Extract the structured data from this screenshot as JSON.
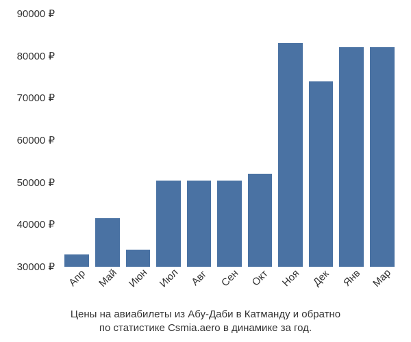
{
  "chart": {
    "type": "bar",
    "categories": [
      "Апр",
      "Май",
      "Июн",
      "Июл",
      "Авг",
      "Сен",
      "Окт",
      "Ноя",
      "Дек",
      "Янв",
      "Мар"
    ],
    "values": [
      33000,
      41500,
      34000,
      50500,
      50500,
      50500,
      52000,
      83000,
      74000,
      82000,
      82000
    ],
    "bar_color": "#4a72a3",
    "ylim": [
      30000,
      90000
    ],
    "ytick_step": 10000,
    "yticks": [
      30000,
      40000,
      50000,
      60000,
      70000,
      80000,
      90000
    ],
    "ytick_labels": [
      "30000 ₽",
      "40000 ₽",
      "50000 ₽",
      "60000 ₽",
      "70000 ₽",
      "80000 ₽",
      "90000 ₽"
    ],
    "currency_symbol": "₽",
    "background_color": "#ffffff",
    "text_color": "#333333",
    "label_fontsize": 15,
    "caption_fontsize": 15,
    "bar_width_ratio": 0.8,
    "x_label_rotation": -45
  },
  "caption_line1": "Цены на авиабилеты из Абу-Даби в Катманду и обратно",
  "caption_line2": "по статистике Csmia.aero в динамике за год."
}
